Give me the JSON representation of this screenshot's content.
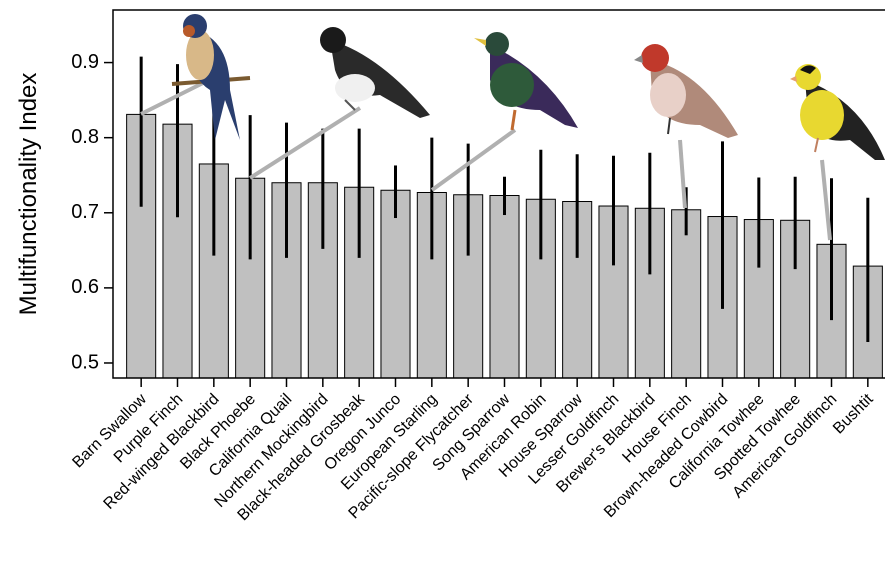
{
  "chart_data": {
    "type": "bar",
    "y_label": "Multifunctionality Index",
    "categories": [
      "Barn Swallow",
      "Purple Finch",
      "Red-winged Blackbird",
      "Black Phoebe",
      "California Quail",
      "Northern Mockingbird",
      "Black-headed Grosbeak",
      "Oregon Junco",
      "European Starling",
      "Pacific-slope Flycatcher",
      "Song Sparrow",
      "American Robin",
      "House Sparrow",
      "Lesser Goldfinch",
      "Brewer's Blackbird",
      "House Finch",
      "Brown-headed Cowbird",
      "California Towhee",
      "Spotted Towhee",
      "American Goldfinch",
      "Bushtit"
    ],
    "values": [
      0.831,
      0.818,
      0.765,
      0.746,
      0.74,
      0.74,
      0.734,
      0.73,
      0.727,
      0.724,
      0.723,
      0.718,
      0.715,
      0.709,
      0.706,
      0.704,
      0.695,
      0.691,
      0.69,
      0.658,
      0.629
    ],
    "lower": [
      0.708,
      0.694,
      0.643,
      0.638,
      0.64,
      0.652,
      0.64,
      0.693,
      0.638,
      0.643,
      0.697,
      0.638,
      0.64,
      0.63,
      0.618,
      0.67,
      0.572,
      0.627,
      0.625,
      0.557,
      0.528
    ],
    "upper": [
      0.908,
      0.898,
      0.87,
      0.83,
      0.82,
      0.812,
      0.812,
      0.763,
      0.8,
      0.792,
      0.748,
      0.784,
      0.778,
      0.776,
      0.78,
      0.734,
      0.795,
      0.747,
      0.748,
      0.746,
      0.72
    ],
    "color": "#c0c0c0",
    "error_color": "#000000",
    "ylim": [
      0.48,
      0.97
    ],
    "yticks": [
      0.5,
      0.6,
      0.7,
      0.8,
      0.9
    ]
  }
}
